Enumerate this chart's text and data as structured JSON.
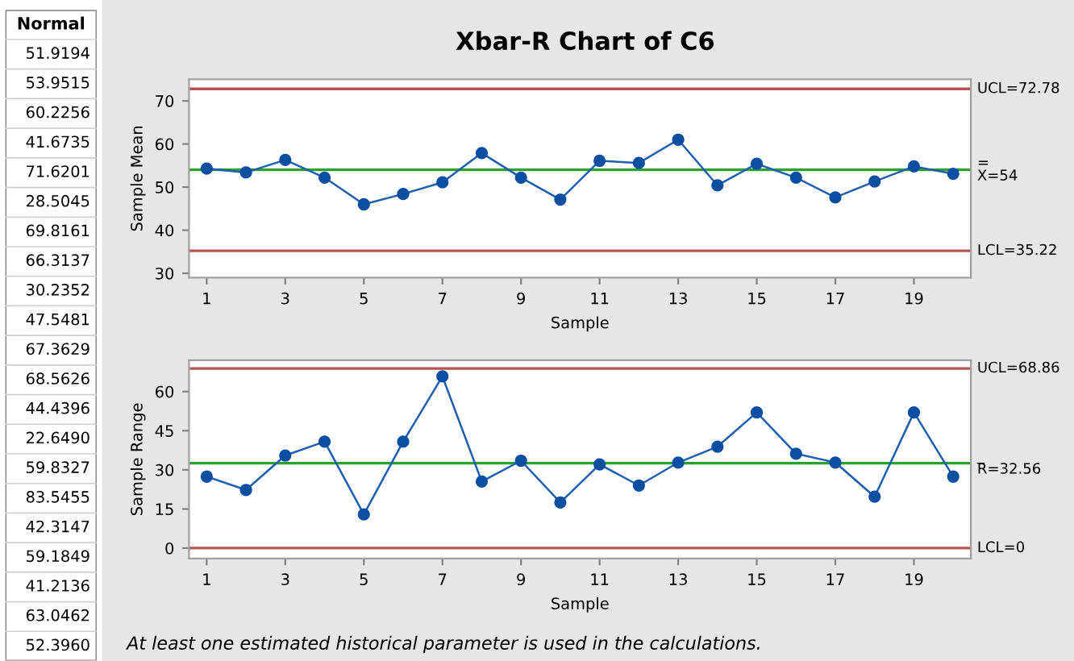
{
  "chart_data": [
    {
      "type": "other",
      "title": "Normal",
      "annotations": [
        "51.9194",
        "53.9515",
        "60.2256",
        "41.6735",
        "71.6201",
        "28.5045",
        "69.8161",
        "66.3137",
        "30.2352",
        "47.5481",
        "67.3629",
        "68.5626",
        "44.4396",
        "22.6490",
        "59.8327",
        "83.5455",
        "42.3147",
        "59.1849",
        "41.2136",
        "63.0462",
        "52.3960"
      ]
    },
    {
      "type": "line",
      "title": "Xbar-R Chart of C6",
      "xlabel": "Sample",
      "ylabel": "Sample Mean",
      "marker": "circle",
      "x": [
        1,
        2,
        3,
        4,
        5,
        6,
        7,
        8,
        9,
        10,
        11,
        12,
        13,
        14,
        15,
        16,
        17,
        18,
        19,
        20
      ],
      "series": [
        {
          "color": "#1f5fad",
          "values": [
            54.3,
            53.4,
            56.3,
            52.2,
            46.0,
            48.4,
            51.1,
            57.9,
            52.2,
            47.1,
            56.1,
            55.6,
            61.0,
            50.4,
            55.4,
            52.2,
            47.6,
            51.3,
            54.8,
            53.1
          ]
        }
      ],
      "xlim": [
        0.55,
        20.45
      ],
      "xticks": [
        1,
        3,
        5,
        7,
        9,
        11,
        13,
        15,
        17,
        19
      ],
      "ylim": [
        29,
        75
      ],
      "yticks": [
        30,
        40,
        50,
        60,
        70
      ],
      "ref_lines": [
        {
          "axis": "y",
          "value": 72.78,
          "label": "UCL=72.78",
          "color": "#b85450"
        },
        {
          "axis": "y",
          "value": 54,
          "label": "=\nX=54",
          "color": "#2ca02c"
        },
        {
          "axis": "y",
          "value": 35.22,
          "label": "LCL=35.22",
          "color": "#b85450"
        }
      ]
    },
    {
      "type": "line",
      "xlabel": "Sample",
      "ylabel": "Sample Range",
      "marker": "circle",
      "x": [
        1,
        2,
        3,
        4,
        5,
        6,
        7,
        8,
        9,
        10,
        11,
        12,
        13,
        14,
        15,
        16,
        17,
        18,
        19,
        20
      ],
      "series": [
        {
          "color": "#1f5fad",
          "values": [
            27.4,
            22.3,
            35.5,
            40.8,
            12.9,
            40.8,
            65.8,
            25.5,
            33.5,
            17.5,
            32.1,
            24.0,
            32.8,
            38.9,
            52.0,
            36.2,
            32.8,
            19.7,
            52.0,
            27.4
          ]
        }
      ],
      "xlim": [
        0.55,
        20.45
      ],
      "xticks": [
        1,
        3,
        5,
        7,
        9,
        11,
        13,
        15,
        17,
        19
      ],
      "ylim": [
        -4,
        72
      ],
      "yticks": [
        0,
        15,
        30,
        45,
        60
      ],
      "ref_lines": [
        {
          "axis": "y",
          "value": 68.86,
          "label": "UCL=68.86",
          "color": "#b85450"
        },
        {
          "axis": "y",
          "value": 32.56,
          "label": "_\nR=32.56",
          "color": "#2ca02c"
        },
        {
          "axis": "y",
          "value": 0,
          "label": "LCL=0",
          "color": "#b85450"
        }
      ],
      "annotations": [
        "At least one estimated historical parameter is used in the calculations."
      ]
    }
  ]
}
